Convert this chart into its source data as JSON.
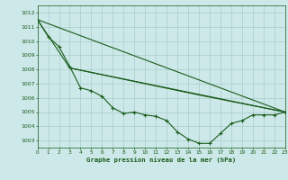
{
  "xlabel": "Graphe pression niveau de la mer (hPa)",
  "ylim": [
    1002.5,
    1012.5
  ],
  "xlim": [
    0,
    23
  ],
  "yticks": [
    1003,
    1004,
    1005,
    1006,
    1007,
    1008,
    1009,
    1010,
    1011,
    1012
  ],
  "xticks": [
    0,
    1,
    2,
    3,
    4,
    5,
    6,
    7,
    8,
    9,
    10,
    11,
    12,
    13,
    14,
    15,
    16,
    17,
    18,
    19,
    20,
    21,
    22,
    23
  ],
  "background_color": "#cce8e8",
  "grid_color": "#aacccc",
  "line_color": "#1a5c1a",
  "line1_x": [
    0,
    1,
    2,
    3,
    4,
    5,
    6,
    7,
    8,
    9,
    10,
    11,
    12,
    13,
    14,
    15,
    16,
    17,
    18,
    19,
    20,
    21,
    22,
    23
  ],
  "line1_y": [
    1011.5,
    1010.3,
    1009.6,
    1008.2,
    1006.7,
    1006.5,
    1006.1,
    1005.3,
    1004.9,
    1005.0,
    1004.8,
    1004.7,
    1004.4,
    1003.6,
    1003.1,
    1002.8,
    1002.8,
    1003.5,
    1004.2,
    1004.4,
    1004.8,
    1004.8,
    1004.8,
    1005.0
  ],
  "line2_x": [
    0,
    23
  ],
  "line2_y": [
    1011.5,
    1005.0
  ],
  "line3_x": [
    0,
    3,
    23
  ],
  "line3_y": [
    1011.5,
    1008.1,
    1005.0
  ],
  "line4_x": [
    3,
    15,
    23
  ],
  "line4_y": [
    1008.1,
    1006.2,
    1005.0
  ]
}
